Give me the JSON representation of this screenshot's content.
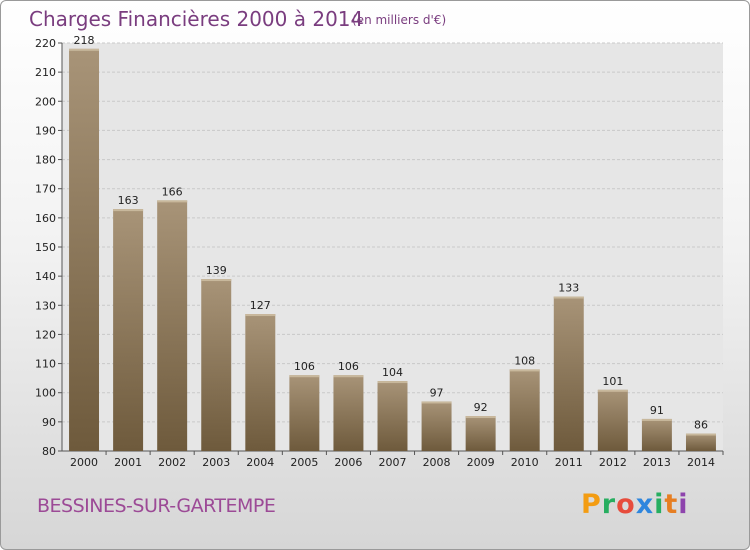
{
  "header": {
    "title": "Charges Financières 2000 à 2014",
    "unit": "(en milliers d'€)"
  },
  "footer": {
    "commune": "BESSINES-SUR-GARTEMPE",
    "brand": "Proxiti"
  },
  "colors": {
    "bar_light": "#a89478",
    "bar_dark": "#6e5a3c",
    "title": "#7a3d7f",
    "brand_letters": [
      "#f39c12",
      "#27ae60",
      "#e74c3c",
      "#2e86de",
      "#27ae60",
      "#e67e22",
      "#8e44ad"
    ]
  },
  "chart_data": {
    "type": "bar",
    "categories": [
      "2000",
      "2001",
      "2002",
      "2003",
      "2004",
      "2005",
      "2006",
      "2007",
      "2008",
      "2009",
      "2010",
      "2011",
      "2012",
      "2013",
      "2014"
    ],
    "values": [
      218,
      163,
      166,
      139,
      127,
      106,
      106,
      104,
      97,
      92,
      108,
      133,
      101,
      91,
      86
    ],
    "ylim": [
      80,
      220
    ],
    "yticks": [
      80,
      90,
      100,
      110,
      120,
      130,
      140,
      150,
      160,
      170,
      180,
      190,
      200,
      210,
      220
    ],
    "grid": true,
    "data_labels": true
  }
}
